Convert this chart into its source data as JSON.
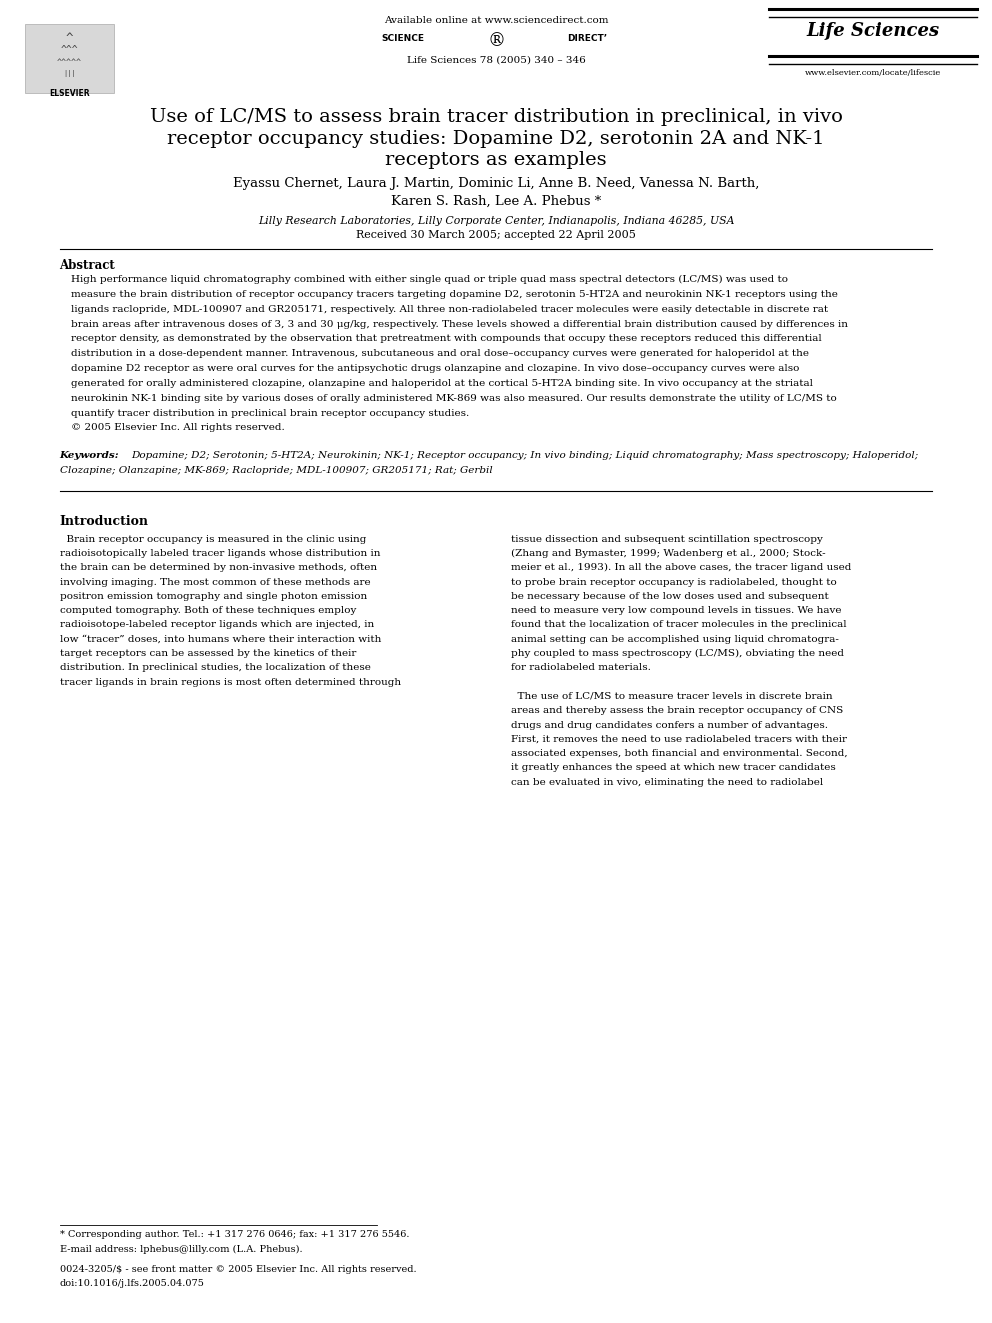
{
  "bg_color": "#ffffff",
  "page_width": 9.92,
  "page_height": 13.23,
  "header_available_online": "Available online at www.sciencedirect.com",
  "header_journal": "Life Sciences 78 (2005) 340 – 346",
  "header_life_sciences": "Life Sciences",
  "header_website": "www.elsevier.com/locate/lifescie",
  "header_elsevier": "ELSEVIER",
  "title_line1": "Use of LC/MS to assess brain tracer distribution in preclinical, in vivo",
  "title_line2": "receptor occupancy studies: Dopamine D2, serotonin 2A and NK-1",
  "title_line3": "receptors as examples",
  "authors_line1": "Eyassu Chernet, Laura J. Martin, Dominic Li, Anne B. Need, Vanessa N. Barth,",
  "authors_line2": "Karen S. Rash, Lee A. Phebus *",
  "affiliation": "Lilly Research Laboratories, Lilly Corporate Center, Indianapolis, Indiana 46285, USA",
  "received": "Received 30 March 2005; accepted 22 April 2005",
  "abstract_heading": "Abstract",
  "abstract_lines": [
    "High performance liquid chromatography combined with either single quad or triple quad mass spectral detectors (LC/MS) was used to",
    "measure the brain distribution of receptor occupancy tracers targeting dopamine D2, serotonin 5-HT2A and neurokinin NK-1 receptors using the",
    "ligands raclopride, MDL-100907 and GR205171, respectively. All three non-radiolabeled tracer molecules were easily detectable in discrete rat",
    "brain areas after intravenous doses of 3, 3 and 30 μg/kg, respectively. These levels showed a differential brain distribution caused by differences in",
    "receptor density, as demonstrated by the observation that pretreatment with compounds that occupy these receptors reduced this differential",
    "distribution in a dose-dependent manner. Intravenous, subcutaneous and oral dose–occupancy curves were generated for haloperidol at the",
    "dopamine D2 receptor as were oral curves for the antipsychotic drugs olanzapine and clozapine. In vivo dose–occupancy curves were also",
    "generated for orally administered clozapine, olanzapine and haloperidol at the cortical 5-HT2A binding site. In vivo occupancy at the striatal",
    "neurokinin NK-1 binding site by various doses of orally administered MK-869 was also measured. Our results demonstrate the utility of LC/MS to",
    "quantify tracer distribution in preclinical brain receptor occupancy studies.",
    "© 2005 Elsevier Inc. All rights reserved."
  ],
  "keywords_label": "Keywords:",
  "keywords_line1": "Dopamine; D2; Serotonin; 5-HT2A; Neurokinin; NK-1; Receptor occupancy; In vivo binding; Liquid chromatography; Mass spectroscopy; Haloperidol;",
  "keywords_line2": "Clozapine; Olanzapine; MK-869; Raclopride; MDL-100907; GR205171; Rat; Gerbil",
  "intro_heading": "Introduction",
  "intro_col1_lines": [
    "  Brain receptor occupancy is measured in the clinic using",
    "radioisotopically labeled tracer ligands whose distribution in",
    "the brain can be determined by non-invasive methods, often",
    "involving imaging. The most common of these methods are",
    "positron emission tomography and single photon emission",
    "computed tomography. Both of these techniques employ",
    "radioisotope-labeled receptor ligands which are injected, in",
    "low “tracer” doses, into humans where their interaction with",
    "target receptors can be assessed by the kinetics of their",
    "distribution. In preclinical studies, the localization of these",
    "tracer ligands in brain regions is most often determined through"
  ],
  "intro_col2_lines": [
    "tissue dissection and subsequent scintillation spectroscopy",
    "(Zhang and Bymaster, 1999; Wadenberg et al., 2000; Stock-",
    "meier et al., 1993). In all the above cases, the tracer ligand used",
    "to probe brain receptor occupancy is radiolabeled, thought to",
    "be necessary because of the low doses used and subsequent",
    "need to measure very low compound levels in tissues. We have",
    "found that the localization of tracer molecules in the preclinical",
    "animal setting can be accomplished using liquid chromatogra-",
    "phy coupled to mass spectroscopy (LC/MS), obviating the need",
    "for radiolabeled materials.",
    "",
    "  The use of LC/MS to measure tracer levels in discrete brain",
    "areas and thereby assess the brain receptor occupancy of CNS",
    "drugs and drug candidates confers a number of advantages.",
    "First, it removes the need to use radiolabeled tracers with their",
    "associated expenses, both financial and environmental. Second,",
    "it greatly enhances the speed at which new tracer candidates",
    "can be evaluated in vivo, eliminating the need to radiolabel"
  ],
  "footnote_star": "* Corresponding author. Tel.: +1 317 276 0646; fax: +1 317 276 5546.",
  "footnote_email": "E-mail address: lphebus@lilly.com (L.A. Phebus).",
  "footnote_issn": "0024-3205/$ - see front matter © 2005 Elsevier Inc. All rights reserved.",
  "footnote_doi": "doi:10.1016/j.lfs.2005.04.075"
}
